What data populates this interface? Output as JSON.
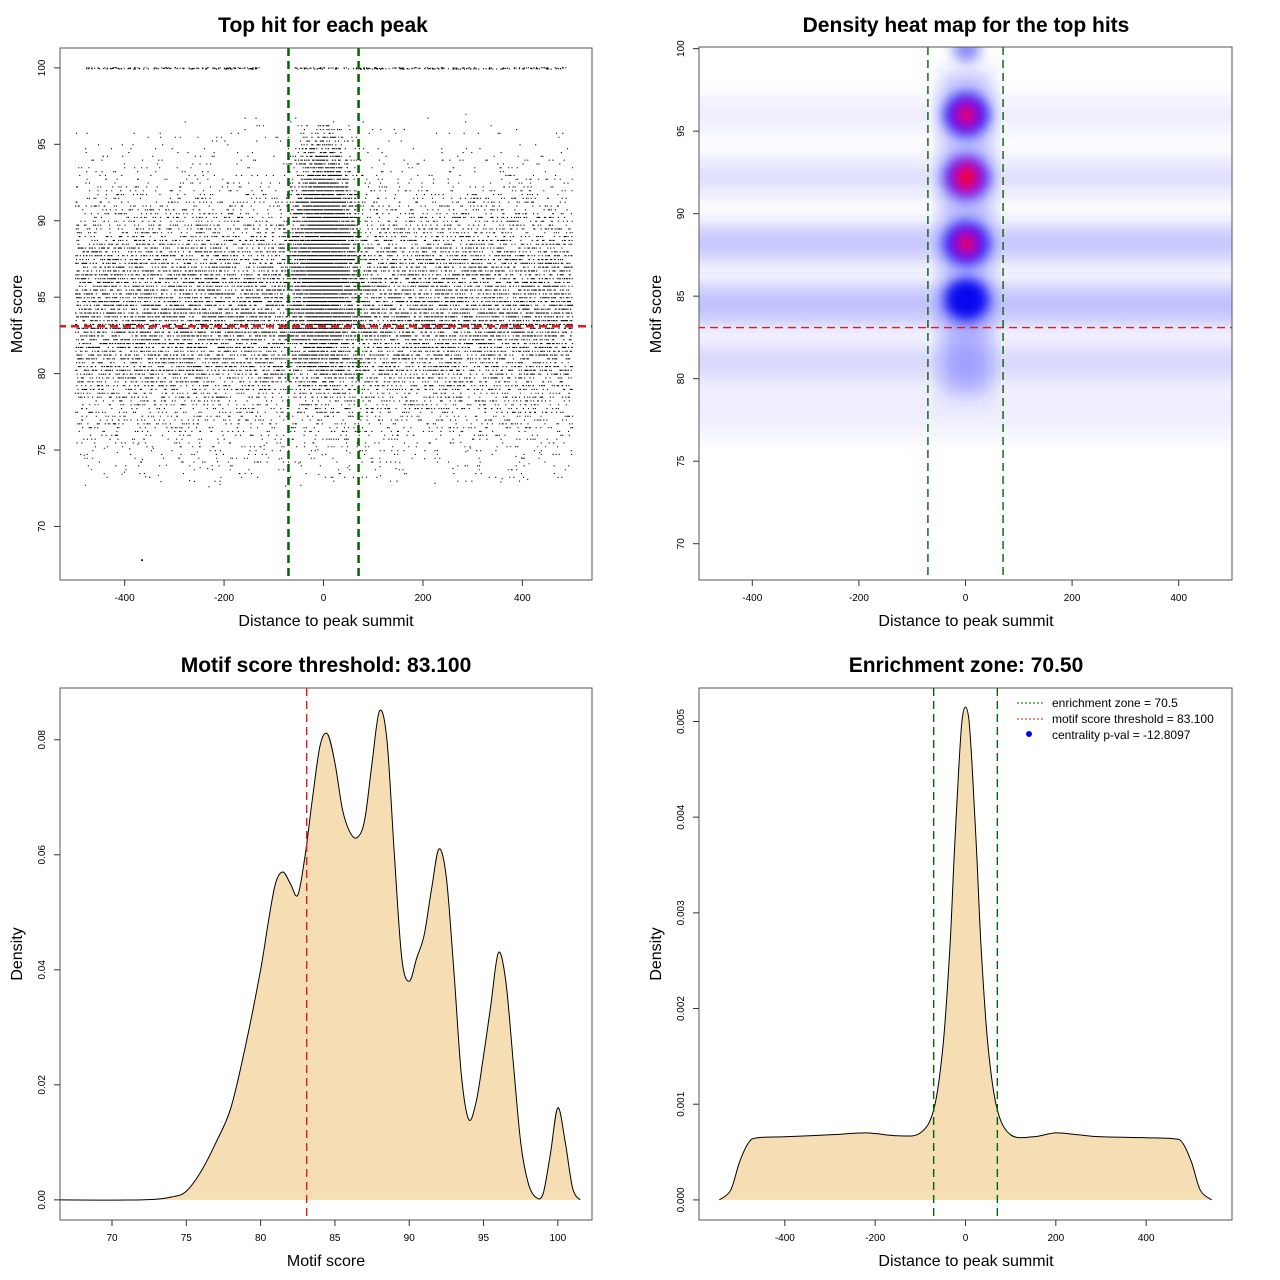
{
  "chart_data": [
    {
      "id": "p1",
      "type": "scatter",
      "title": "Top hit for each peak",
      "xlabel": "Distance to peak summit",
      "ylabel": "Motif score",
      "xlim": [
        -530,
        540
      ],
      "ylim": [
        66.5,
        101.3
      ],
      "xticks": [
        -400,
        -200,
        0,
        200,
        400
      ],
      "yticks": [
        70,
        75,
        80,
        85,
        90,
        95,
        100
      ],
      "hlines": [
        {
          "y": 83.1,
          "color": "#e31a1c",
          "style": "dashed"
        }
      ],
      "vlines": [
        {
          "x": -70.5,
          "color": "#006400",
          "style": "dashed"
        },
        {
          "x": 70.5,
          "color": "#006400",
          "style": "dashed"
        }
      ],
      "points_note": "dense point cloud; x in [-500,500], y mostly 75-97 concentrated near x=0, plus a row at y=100",
      "outlier_points": [
        {
          "x": -365,
          "y": 67.8
        }
      ]
    },
    {
      "id": "p2",
      "type": "heatmap",
      "title": "Density heat map for the top hits",
      "xlabel": "Distance to peak summit",
      "ylabel": "Motif score",
      "xlim": [
        -500,
        500
      ],
      "ylim": [
        67.8,
        100.1
      ],
      "xticks": [
        -400,
        -200,
        0,
        200,
        400
      ],
      "yticks": [
        70,
        75,
        80,
        85,
        90,
        95,
        100
      ],
      "hlines": [
        {
          "y": 83.1,
          "color": "#e31a1c",
          "style": "dashed"
        }
      ],
      "vlines": [
        {
          "x": -70.5,
          "color": "#006400",
          "style": "dashed"
        },
        {
          "x": 70.5,
          "color": "#006400",
          "style": "dashed"
        }
      ],
      "hotspots": [
        {
          "x": 2,
          "y": 96.0,
          "level": "high"
        },
        {
          "x": 2,
          "y": 92.2,
          "level": "highest"
        },
        {
          "x": 2,
          "y": 88.2,
          "level": "high"
        },
        {
          "x": 2,
          "y": 84.8,
          "level": "medium"
        },
        {
          "x": 2,
          "y": 100.0,
          "level": "low"
        }
      ]
    },
    {
      "id": "p3",
      "type": "area",
      "title": "Motif score threshold: 83.100",
      "xlabel": "Motif score",
      "ylabel": "Density",
      "xlim": [
        66.5,
        102.3
      ],
      "ylim": [
        -0.0035,
        0.089
      ],
      "xticks": [
        70,
        75,
        80,
        85,
        90,
        95,
        100
      ],
      "yticks": [
        0.0,
        0.02,
        0.04,
        0.06,
        0.08
      ],
      "ytick_labels": [
        "0.00",
        "0.02",
        "0.04",
        "0.06",
        "0.08"
      ],
      "vlines": [
        {
          "x": 83.1,
          "color": "#e31a1c",
          "style": "dashed"
        }
      ],
      "fill": "#f5deb3",
      "x": [
        66.5,
        72.0,
        74.0,
        75.0,
        76.0,
        77.0,
        78.0,
        79.0,
        80.0,
        80.5,
        81.0,
        81.5,
        82.0,
        82.5,
        83.0,
        83.5,
        84.0,
        84.5,
        85.0,
        85.5,
        86.0,
        86.5,
        87.0,
        87.5,
        88.0,
        88.5,
        89.0,
        89.5,
        90.0,
        90.5,
        91.0,
        91.5,
        92.0,
        92.5,
        93.0,
        93.5,
        94.0,
        94.5,
        95.0,
        95.5,
        96.0,
        96.5,
        97.0,
        97.5,
        98.0,
        98.5,
        99.0,
        99.5,
        100.0,
        100.5,
        101.0,
        101.5
      ],
      "y": [
        0.0,
        0.0,
        0.0005,
        0.0015,
        0.005,
        0.01,
        0.016,
        0.027,
        0.04,
        0.048,
        0.055,
        0.057,
        0.055,
        0.053,
        0.06,
        0.07,
        0.079,
        0.081,
        0.076,
        0.068,
        0.064,
        0.063,
        0.066,
        0.076,
        0.085,
        0.08,
        0.06,
        0.042,
        0.038,
        0.042,
        0.046,
        0.054,
        0.061,
        0.056,
        0.04,
        0.022,
        0.014,
        0.017,
        0.025,
        0.034,
        0.043,
        0.038,
        0.024,
        0.01,
        0.003,
        0.0005,
        0.001,
        0.008,
        0.016,
        0.01,
        0.002,
        0.0
      ]
    },
    {
      "id": "p4",
      "type": "area",
      "title": "Enrichment zone: 70.50",
      "xlabel": "Distance to peak summit",
      "ylabel": "Density",
      "xlim": [
        -590,
        590
      ],
      "ylim": [
        -0.00021,
        0.00535
      ],
      "xticks": [
        -400,
        -200,
        0,
        200,
        400
      ],
      "yticks": [
        0.0,
        0.001,
        0.002,
        0.003,
        0.004,
        0.005
      ],
      "ytick_labels": [
        "0.000",
        "0.001",
        "0.002",
        "0.003",
        "0.004",
        "0.005"
      ],
      "vlines": [
        {
          "x": -70.5,
          "color": "#006400",
          "style": "dashed"
        },
        {
          "x": 70.5,
          "color": "#006400",
          "style": "dashed"
        }
      ],
      "fill": "#f5deb3",
      "x": [
        -545,
        -520,
        -500,
        -480,
        -460,
        -400,
        -300,
        -220,
        -150,
        -100,
        -70,
        -50,
        -35,
        -25,
        -15,
        -8,
        0,
        8,
        15,
        25,
        35,
        50,
        70,
        100,
        150,
        200,
        250,
        300,
        400,
        460,
        480,
        500,
        520,
        545
      ],
      "y": [
        0.0,
        0.0001,
        0.0004,
        0.0006,
        0.00065,
        0.00066,
        0.00068,
        0.0007,
        0.00067,
        0.0007,
        0.00095,
        0.0016,
        0.0026,
        0.0036,
        0.0045,
        0.005,
        0.00515,
        0.005,
        0.0045,
        0.0036,
        0.0026,
        0.0016,
        0.00095,
        0.00068,
        0.00066,
        0.0007,
        0.00068,
        0.00066,
        0.00065,
        0.00064,
        0.0006,
        0.0004,
        0.0001,
        0.0
      ],
      "legend": {
        "placement": "top-right",
        "items": [
          {
            "label": "enrichment zone = 70.5",
            "color": "#006400",
            "style": "dotted-line"
          },
          {
            "label": "motif score threshold = 83.100",
            "color": "#e31a1c",
            "style": "dotted-line"
          },
          {
            "label": "centrality p-val = -12.8097",
            "color": "#0000ff",
            "style": "point"
          }
        ]
      }
    }
  ]
}
